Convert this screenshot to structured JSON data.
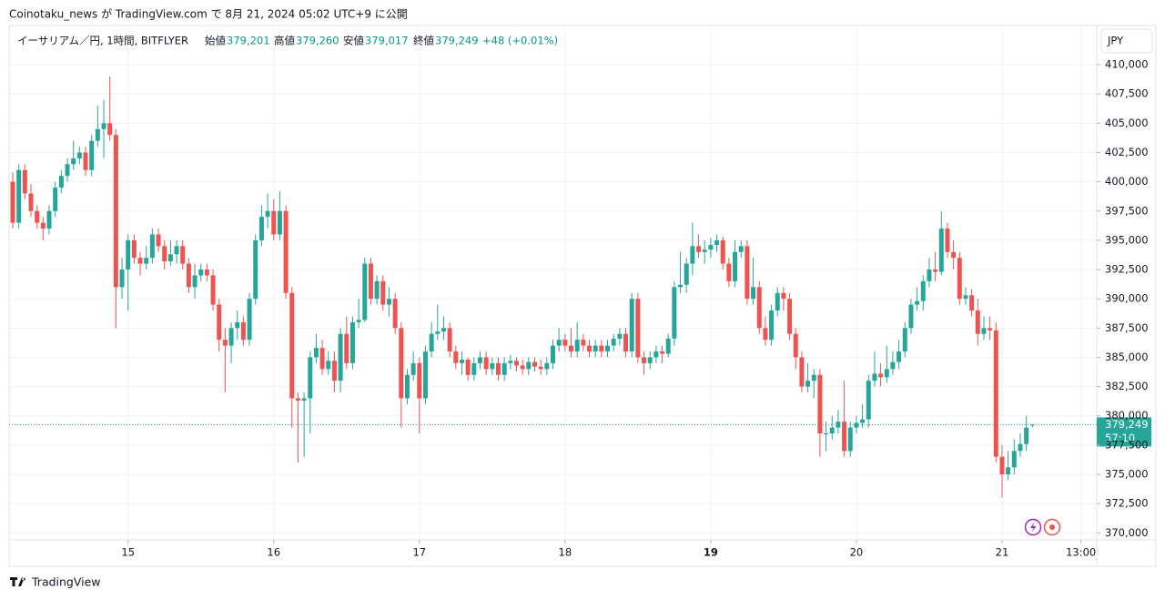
{
  "chart_data": {
    "type": "candlestick",
    "header": "Coinotaku_news が TradingView.com で 8月 21, 2024 05:02 UTC+9 に公開",
    "legend": {
      "symbol": "イーサリアム／円, 1時間, BITFLYER",
      "open_label": "始値",
      "open": "379,201",
      "high_label": "高値",
      "high": "379,260",
      "low_label": "安値",
      "low": "379,017",
      "close_label": "終値",
      "close": "379,249",
      "change": "+48 (+0.01%)"
    },
    "currency": "JPY",
    "last_price_label": "379,249",
    "countdown": "57:10",
    "brand": "TradingView",
    "up_color": "#26a69a",
    "down_color": "#ef5350",
    "grid": true,
    "ylim": [
      369400,
      413350
    ],
    "yticks": [
      {
        "value": 370000,
        "label": "370,000"
      },
      {
        "value": 372500,
        "label": "372,500"
      },
      {
        "value": 375000,
        "label": "375,000"
      },
      {
        "value": 377500,
        "label": "377,500"
      },
      {
        "value": 380000,
        "label": "380,000"
      },
      {
        "value": 382500,
        "label": "382,500"
      },
      {
        "value": 385000,
        "label": "385,000"
      },
      {
        "value": 387500,
        "label": "387,500"
      },
      {
        "value": 390000,
        "label": "390,000"
      },
      {
        "value": 392500,
        "label": "392,500"
      },
      {
        "value": 395000,
        "label": "395,000"
      },
      {
        "value": 397500,
        "label": "397,500"
      },
      {
        "value": 400000,
        "label": "400,000"
      },
      {
        "value": 402500,
        "label": "402,500"
      },
      {
        "value": 405000,
        "label": "405,000"
      },
      {
        "value": 407500,
        "label": "407,500"
      },
      {
        "value": 410000,
        "label": "410,000"
      }
    ],
    "xlim": [
      -0.6,
      178.6
    ],
    "xticks": [
      {
        "value": 19,
        "label": "15"
      },
      {
        "value": 43,
        "label": "16"
      },
      {
        "value": 67,
        "label": "17"
      },
      {
        "value": 91,
        "label": "18"
      },
      {
        "value": 115,
        "label": "19"
      },
      {
        "value": 139,
        "label": "20"
      },
      {
        "value": 163,
        "label": "21"
      },
      {
        "value": 176,
        "label": "13:00"
      }
    ],
    "ohlc": [
      [
        400000,
        400800,
        396000,
        396500
      ],
      [
        396500,
        401500,
        396000,
        401000
      ],
      [
        401000,
        401500,
        398500,
        399000
      ],
      [
        399000,
        399800,
        397000,
        397500
      ],
      [
        397500,
        398000,
        396000,
        396500
      ],
      [
        396500,
        397000,
        395000,
        396000
      ],
      [
        396000,
        398000,
        395500,
        397500
      ],
      [
        397500,
        400000,
        397000,
        399500
      ],
      [
        399500,
        401000,
        399000,
        400500
      ],
      [
        400500,
        402000,
        400000,
        401500
      ],
      [
        401500,
        403500,
        401000,
        402000
      ],
      [
        402000,
        403000,
        401500,
        402500
      ],
      [
        402500,
        403000,
        400500,
        401000
      ],
      [
        401000,
        404000,
        400500,
        403500
      ],
      [
        403500,
        406500,
        403000,
        404500
      ],
      [
        404500,
        407000,
        402000,
        405000
      ],
      [
        405000,
        409000,
        403500,
        404000
      ],
      [
        404000,
        404500,
        387500,
        391000
      ],
      [
        391000,
        393500,
        390000,
        392500
      ],
      [
        392500,
        395500,
        389000,
        395000
      ],
      [
        395000,
        395500,
        393000,
        393500
      ],
      [
        393500,
        394000,
        392000,
        393000
      ],
      [
        393000,
        394500,
        392500,
        393500
      ],
      [
        393500,
        396000,
        393000,
        395500
      ],
      [
        395500,
        396000,
        394000,
        394500
      ],
      [
        394500,
        395000,
        392500,
        393200
      ],
      [
        393200,
        395000,
        392800,
        393800
      ],
      [
        393800,
        395000,
        393000,
        394500
      ],
      [
        394500,
        395000,
        392500,
        393000
      ],
      [
        393000,
        393500,
        390500,
        391000
      ],
      [
        391000,
        393000,
        390000,
        392000
      ],
      [
        392000,
        393000,
        391500,
        392500
      ],
      [
        392500,
        393000,
        391500,
        392000
      ],
      [
        392000,
        392500,
        389000,
        389500
      ],
      [
        389500,
        390000,
        385500,
        386500
      ],
      [
        386500,
        387500,
        382000,
        386000
      ],
      [
        386000,
        388000,
        384500,
        387500
      ],
      [
        387500,
        389000,
        386500,
        388000
      ],
      [
        388000,
        388500,
        386000,
        386500
      ],
      [
        386500,
        390500,
        386000,
        390000
      ],
      [
        390000,
        395500,
        389500,
        395000
      ],
      [
        395000,
        398000,
        394500,
        397000
      ],
      [
        397000,
        399000,
        396000,
        397500
      ],
      [
        397500,
        398500,
        395000,
        395500
      ],
      [
        395500,
        399200,
        395000,
        397500
      ],
      [
        397500,
        398000,
        390000,
        390500
      ],
      [
        390500,
        391000,
        379000,
        381500
      ],
      [
        381500,
        382000,
        376000,
        381300
      ],
      [
        381300,
        382000,
        376500,
        381500
      ],
      [
        381500,
        385500,
        378500,
        385000
      ],
      [
        385000,
        387000,
        384500,
        385800
      ],
      [
        385800,
        386500,
        383500,
        384000
      ],
      [
        384000,
        385500,
        383500,
        384700
      ],
      [
        384700,
        385500,
        382000,
        383000
      ],
      [
        383000,
        387500,
        382000,
        387000
      ],
      [
        387000,
        388500,
        384000,
        384500
      ],
      [
        384500,
        388500,
        384000,
        388000
      ],
      [
        388000,
        390000,
        387500,
        388200
      ],
      [
        388200,
        393500,
        388000,
        393000
      ],
      [
        393000,
        393500,
        389500,
        390000
      ],
      [
        390000,
        392000,
        389500,
        391500
      ],
      [
        391500,
        392000,
        389000,
        389500
      ],
      [
        389500,
        391000,
        388500,
        390000
      ],
      [
        390000,
        390500,
        387000,
        387500
      ],
      [
        387500,
        388000,
        379000,
        381500
      ],
      [
        381500,
        384000,
        381000,
        383500
      ],
      [
        383500,
        385500,
        383000,
        384500
      ],
      [
        384500,
        385000,
        378500,
        381500
      ],
      [
        381500,
        386000,
        381000,
        385500
      ],
      [
        385500,
        388000,
        385000,
        387000
      ],
      [
        387000,
        389500,
        386500,
        387200
      ],
      [
        387200,
        388500,
        386500,
        387500
      ],
      [
        387500,
        388000,
        385000,
        385500
      ],
      [
        385500,
        386000,
        384000,
        384500
      ],
      [
        384500,
        385500,
        383500,
        384800
      ],
      [
        384800,
        385000,
        383000,
        383500
      ],
      [
        383500,
        385000,
        383000,
        384500
      ],
      [
        384500,
        385500,
        384000,
        385000
      ],
      [
        385000,
        385500,
        383500,
        384000
      ],
      [
        384000,
        385000,
        383500,
        384500
      ],
      [
        384500,
        385000,
        383000,
        383500
      ],
      [
        383500,
        385000,
        383000,
        384500
      ],
      [
        384500,
        385200,
        384000,
        384700
      ],
      [
        384700,
        385000,
        383800,
        384300
      ],
      [
        384300,
        384800,
        383500,
        384000
      ],
      [
        384000,
        385000,
        383500,
        384600
      ],
      [
        384600,
        385000,
        383800,
        384200
      ],
      [
        384200,
        384800,
        383500,
        384000
      ],
      [
        384000,
        385000,
        383500,
        384500
      ],
      [
        384500,
        386500,
        384000,
        386000
      ],
      [
        386000,
        387500,
        385500,
        386500
      ],
      [
        386500,
        387000,
        385500,
        386000
      ],
      [
        386000,
        387500,
        385000,
        385500
      ],
      [
        385500,
        388000,
        385000,
        386500
      ],
      [
        386500,
        387000,
        385500,
        386000
      ],
      [
        386000,
        386500,
        385000,
        385500
      ],
      [
        385500,
        386500,
        385000,
        386000
      ],
      [
        386000,
        386500,
        385000,
        385500
      ],
      [
        385500,
        386500,
        385000,
        386000
      ],
      [
        386000,
        387000,
        385500,
        386600
      ],
      [
        386600,
        387500,
        386000,
        387000
      ],
      [
        387000,
        387500,
        385000,
        385500
      ],
      [
        385500,
        390500,
        385000,
        390000
      ],
      [
        390000,
        390500,
        384500,
        385000
      ],
      [
        385000,
        385500,
        383500,
        384500
      ],
      [
        384500,
        385500,
        384000,
        385000
      ],
      [
        385000,
        386000,
        384500,
        385500
      ],
      [
        385500,
        386000,
        384500,
        385300
      ],
      [
        385300,
        387000,
        385000,
        386600
      ],
      [
        386600,
        391500,
        386000,
        391000
      ],
      [
        391000,
        394000,
        390500,
        391200
      ],
      [
        391200,
        393500,
        390500,
        393000
      ],
      [
        393000,
        396500,
        392000,
        394500
      ],
      [
        394500,
        395500,
        393500,
        394000
      ],
      [
        394000,
        395000,
        393000,
        394200
      ],
      [
        394200,
        395200,
        393500,
        394600
      ],
      [
        394600,
        395500,
        394000,
        395000
      ],
      [
        395000,
        395300,
        392500,
        393000
      ],
      [
        393000,
        393500,
        391000,
        391500
      ],
      [
        391500,
        395000,
        391000,
        394000
      ],
      [
        394000,
        395000,
        393500,
        394500
      ],
      [
        394500,
        395000,
        389500,
        390000
      ],
      [
        390000,
        393500,
        389500,
        391000
      ],
      [
        391000,
        391500,
        387000,
        387500
      ],
      [
        387500,
        388500,
        386000,
        386500
      ],
      [
        386500,
        389500,
        386000,
        389000
      ],
      [
        389000,
        391000,
        388500,
        390500
      ],
      [
        390500,
        391000,
        389000,
        390000
      ],
      [
        390000,
        390500,
        386500,
        387000
      ],
      [
        387000,
        387500,
        384000,
        385000
      ],
      [
        385000,
        385500,
        382000,
        382500
      ],
      [
        382500,
        384500,
        382000,
        383000
      ],
      [
        383000,
        384000,
        381500,
        383500
      ],
      [
        383500,
        384000,
        376500,
        378500
      ],
      [
        378500,
        379500,
        377000,
        378500
      ],
      [
        378500,
        380000,
        378000,
        379000
      ],
      [
        379000,
        380500,
        378500,
        379500
      ],
      [
        379500,
        383000,
        376500,
        377000
      ],
      [
        377000,
        379500,
        376500,
        379000
      ],
      [
        379000,
        380000,
        378500,
        379400
      ],
      [
        379400,
        381000,
        379000,
        379700
      ],
      [
        379700,
        383500,
        379000,
        383000
      ],
      [
        383000,
        385500,
        382500,
        383600
      ],
      [
        383600,
        384500,
        382500,
        383300
      ],
      [
        383300,
        386000,
        382800,
        384000
      ],
      [
        384000,
        385500,
        383500,
        384600
      ],
      [
        384600,
        386500,
        384000,
        385500
      ],
      [
        385500,
        388000,
        385000,
        387500
      ],
      [
        387500,
        390000,
        387000,
        389500
      ],
      [
        389500,
        391000,
        389000,
        389800
      ],
      [
        389800,
        392000,
        389000,
        391500
      ],
      [
        391500,
        393500,
        391000,
        392500
      ],
      [
        392500,
        394000,
        391500,
        392300
      ],
      [
        392300,
        397500,
        392000,
        396000
      ],
      [
        396000,
        396500,
        393500,
        394000
      ],
      [
        394000,
        395000,
        392500,
        393500
      ],
      [
        393500,
        394000,
        389500,
        390000
      ],
      [
        390000,
        391000,
        389500,
        390300
      ],
      [
        390300,
        390800,
        388500,
        389000
      ],
      [
        389000,
        390000,
        386000,
        387000
      ],
      [
        387000,
        388500,
        386500,
        387500
      ],
      [
        387500,
        388500,
        386500,
        387300
      ],
      [
        387300,
        388000,
        376000,
        376500
      ],
      [
        376500,
        377500,
        373000,
        375000
      ],
      [
        375000,
        377000,
        374500,
        375600
      ],
      [
        375600,
        378000,
        375000,
        377000
      ],
      [
        377000,
        378500,
        376500,
        377600
      ],
      [
        377600,
        380000,
        377000,
        379000
      ],
      [
        379201,
        379260,
        379017,
        379249
      ]
    ]
  }
}
